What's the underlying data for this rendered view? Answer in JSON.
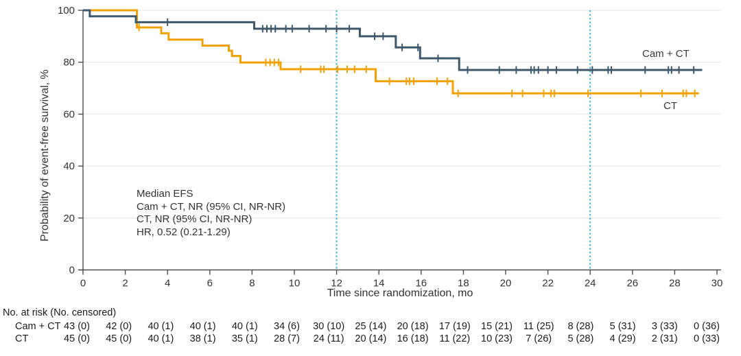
{
  "figure": {
    "y_axis_title": "Probability of event-free survival, %",
    "x_axis_title": "Time since randomization, mo",
    "annotation_lines": [
      "Median EFS",
      "Cam + CT, NR (95% CI, NR-NR)",
      "CT, NR (95% CI, NR-NR)",
      "HR, 0.52 (0.21-1.29)"
    ]
  },
  "colors": {
    "cam_ct": "#3E586B",
    "ct": "#F2A104",
    "reference_line": "#3FB1E3",
    "grid": "#EAEAEA",
    "axis": "#4D4D4D",
    "text": "#333333"
  },
  "chart_data": {
    "type": "line",
    "subtype": "kaplan-meier-step",
    "title": "",
    "xlabel": "Time since randomization, mo",
    "ylabel": "Probability of event-free survival, %",
    "xlim": [
      0,
      30
    ],
    "ylim": [
      0,
      100
    ],
    "x_ticks": [
      0,
      2,
      4,
      6,
      8,
      10,
      12,
      14,
      16,
      18,
      20,
      22,
      24,
      26,
      28,
      30
    ],
    "y_ticks": [
      0,
      20,
      40,
      60,
      80,
      100
    ],
    "grid": "horizontal",
    "reference_lines_x": [
      12,
      24
    ],
    "series": [
      {
        "name": "Cam + CT",
        "color": "#3E586B",
        "end_time": 29.3,
        "steps": [
          [
            0,
            100
          ],
          [
            0.32,
            97.7
          ],
          [
            2.5,
            95.4
          ],
          [
            8.1,
            92.9
          ],
          [
            13.1,
            90.0
          ],
          [
            14.8,
            85.7
          ],
          [
            15.95,
            81.5
          ],
          [
            17.8,
            77.0
          ]
        ],
        "censor_times": [
          4.0,
          8.5,
          8.7,
          8.9,
          9.1,
          9.6,
          9.9,
          10.7,
          11.5,
          12.0,
          12.6,
          13.8,
          14.2,
          15.1,
          15.85,
          16.8,
          18.2,
          19.7,
          20.5,
          21.2,
          21.35,
          21.55,
          22.0,
          22.4,
          23.4,
          24.1,
          24.85,
          25.0,
          26.6,
          27.7,
          27.85,
          28.2,
          28.9
        ]
      },
      {
        "name": "CT",
        "color": "#F2A104",
        "end_time": 29.15,
        "steps": [
          [
            0,
            100
          ],
          [
            2.55,
            93.4
          ],
          [
            3.7,
            91.1
          ],
          [
            4.05,
            88.7
          ],
          [
            5.65,
            86.4
          ],
          [
            6.9,
            84.4
          ],
          [
            7.05,
            82.4
          ],
          [
            7.45,
            79.9
          ],
          [
            9.35,
            77.3
          ],
          [
            13.85,
            72.7
          ],
          [
            17.5,
            68.0
          ]
        ],
        "censor_times": [
          2.65,
          8.65,
          8.85,
          9.05,
          9.25,
          10.3,
          11.25,
          11.4,
          12.05,
          12.5,
          12.85,
          13.4,
          14.5,
          15.3,
          15.45,
          15.65,
          16.75,
          17.25,
          17.75,
          20.3,
          20.8,
          21.8,
          22.15,
          22.3,
          23.9,
          26.4,
          27.4,
          28.4,
          28.55,
          28.95
        ]
      }
    ],
    "annotations": [
      "Median EFS",
      "Cam + CT, NR (95% CI, NR-NR)",
      "CT, NR (95% CI, NR-NR)",
      "HR, 0.52 (0.21-1.29)"
    ]
  },
  "risk_table": {
    "header": "No. at risk (No. censored)",
    "times": [
      0,
      2,
      4,
      6,
      8,
      10,
      12,
      14,
      16,
      18,
      20,
      22,
      24,
      26,
      28,
      30
    ],
    "rows": [
      {
        "label": "Cam + CT",
        "values": [
          "43 (0)",
          "42 (0)",
          "40 (1)",
          "40 (1)",
          "40 (1)",
          "34 (6)",
          "30 (10)",
          "25 (14)",
          "20 (18)",
          "17 (19)",
          "15 (21)",
          "11 (25)",
          "8 (28)",
          "5 (31)",
          "3 (33)",
          "0 (36)"
        ]
      },
      {
        "label": "CT",
        "values": [
          "45 (0)",
          "45 (0)",
          "40 (1)",
          "38 (1)",
          "35 (1)",
          "28 (7)",
          "24 (11)",
          "20 (14)",
          "16 (18)",
          "11 (22)",
          "10 (23)",
          "7 (26)",
          "5 (28)",
          "4 (29)",
          "2 (31)",
          "0 (33)"
        ]
      }
    ]
  }
}
